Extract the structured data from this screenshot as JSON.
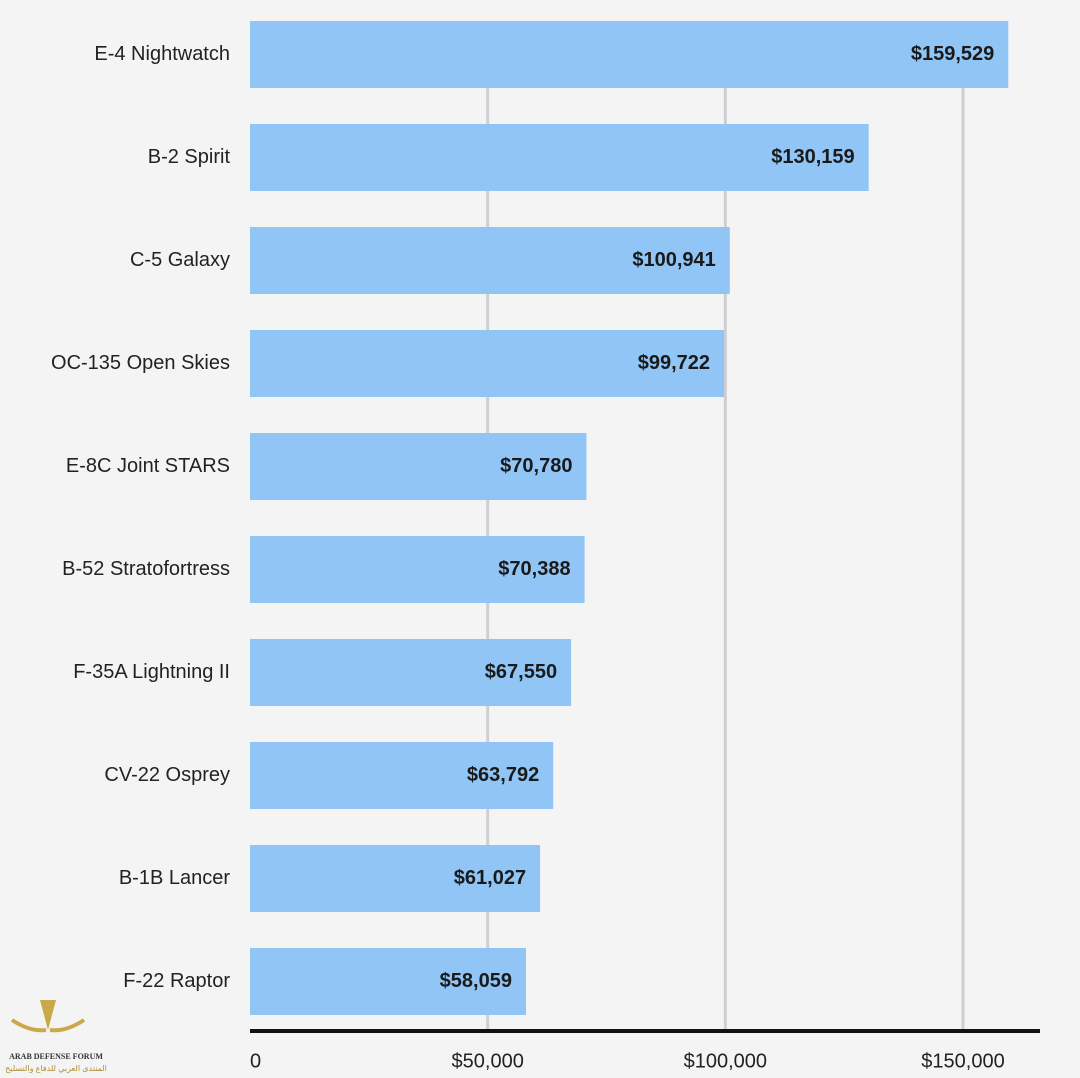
{
  "chart_data": {
    "type": "bar",
    "orientation": "horizontal",
    "categories": [
      "E-4 Nightwatch",
      "B-2 Spirit",
      "C-5 Galaxy",
      "OC-135 Open Skies",
      "E-8C Joint STARS",
      "B-52 Stratofortress",
      "F-35A Lightning II",
      "CV-22 Osprey",
      "B-1B Lancer",
      "F-22 Raptor"
    ],
    "values": [
      159529,
      130159,
      100941,
      99722,
      70780,
      70388,
      67550,
      63792,
      61027,
      58059
    ],
    "value_labels": [
      "$159,529",
      "$130,159",
      "$100,941",
      "$99,722",
      "$70,780",
      "$70,388",
      "$67,550",
      "$63,792",
      "$61,027",
      "$58,059"
    ],
    "color": "#90c5f5",
    "xlim": [
      0,
      166200
    ],
    "xticks": [
      0,
      {
        "value": 50000,
        "label": "$50,000"
      },
      {
        "value": 100000,
        "label": "$100,000"
      },
      {
        "value": 150000,
        "label": "$150,000"
      }
    ],
    "grid": true,
    "watermark": {
      "title": "ARAB DEFENSE FORUM",
      "subtitle": "المنتدى العربي للدفاع والتسليح"
    }
  }
}
